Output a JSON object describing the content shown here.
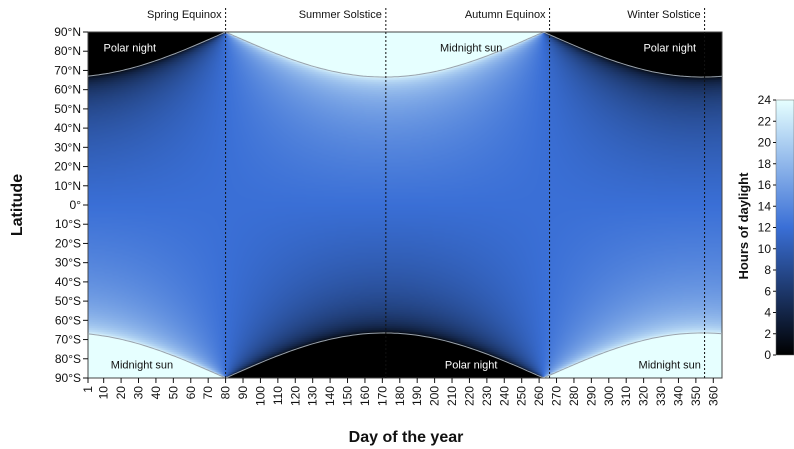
{
  "chart_data": {
    "type": "heatmap",
    "xlabel": "Day of the year",
    "ylabel": "Latitude",
    "xlim": [
      1,
      365
    ],
    "ylim": [
      -90,
      90
    ],
    "x_ticks": [
      "1",
      "10",
      "20",
      "30",
      "40",
      "50",
      "60",
      "70",
      "80",
      "90",
      "100",
      "110",
      "120",
      "130",
      "140",
      "150",
      "160",
      "170",
      "180",
      "190",
      "200",
      "210",
      "220",
      "230",
      "240",
      "250",
      "260",
      "270",
      "280",
      "290",
      "300",
      "310",
      "320",
      "330",
      "340",
      "350",
      "360"
    ],
    "y_ticks": [
      {
        "value": 90,
        "label": "90°N"
      },
      {
        "value": 80,
        "label": "80°N"
      },
      {
        "value": 70,
        "label": "70°N"
      },
      {
        "value": 60,
        "label": "60°N"
      },
      {
        "value": 50,
        "label": "50°N"
      },
      {
        "value": 40,
        "label": "40°N"
      },
      {
        "value": 30,
        "label": "30°N"
      },
      {
        "value": 20,
        "label": "20°N"
      },
      {
        "value": 10,
        "label": "10°N"
      },
      {
        "value": 0,
        "label": "0°"
      },
      {
        "value": -10,
        "label": "10°S"
      },
      {
        "value": -20,
        "label": "20°S"
      },
      {
        "value": -30,
        "label": "30°S"
      },
      {
        "value": -40,
        "label": "40°S"
      },
      {
        "value": -50,
        "label": "50°S"
      },
      {
        "value": -60,
        "label": "60°S"
      },
      {
        "value": -70,
        "label": "70°S"
      },
      {
        "value": -80,
        "label": "80°S"
      },
      {
        "value": -90,
        "label": "90°S"
      }
    ],
    "colorbar": {
      "label": "Hours of daylight",
      "range": [
        0,
        24
      ],
      "ticks": [
        "0",
        "2",
        "4",
        "6",
        "8",
        "10",
        "12",
        "14",
        "16",
        "18",
        "20",
        "22",
        "24"
      ],
      "colors": [
        "#000000",
        "#3a6fd6",
        "#e6ffff"
      ]
    },
    "events": [
      {
        "day": 80,
        "label": "Spring Equinox"
      },
      {
        "day": 172,
        "label": "Summer Solstice"
      },
      {
        "day": 266,
        "label": "Autumn Equinox"
      },
      {
        "day": 355,
        "label": "Winter Solstice"
      }
    ],
    "regions": [
      {
        "label": "Polar night",
        "day": 25,
        "lat": 82,
        "color": "#ffffff"
      },
      {
        "label": "Midnight sun",
        "day": 221,
        "lat": 82,
        "color": "#111111"
      },
      {
        "label": "Polar night",
        "day": 335,
        "lat": 82,
        "color": "#ffffff"
      },
      {
        "label": "Midnight sun",
        "day": 32,
        "lat": -83,
        "color": "#111111"
      },
      {
        "label": "Polar night",
        "day": 221,
        "lat": -83,
        "color": "#ffffff"
      },
      {
        "label": "Midnight sun",
        "day": 335,
        "lat": -83,
        "color": "#111111"
      }
    ],
    "grid": false
  }
}
